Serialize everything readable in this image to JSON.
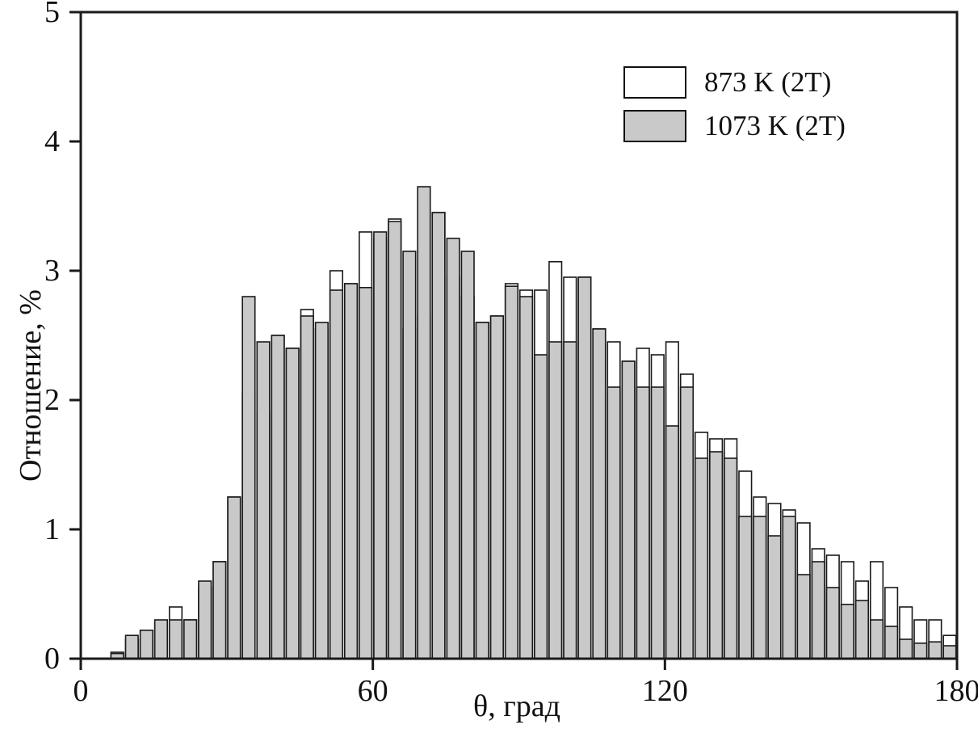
{
  "chart_data": {
    "type": "bar",
    "title": "",
    "xlabel": "θ, град",
    "ylabel": "Отношение, %",
    "xlim": [
      0,
      180
    ],
    "ylim": [
      0,
      5
    ],
    "xticks": [
      0,
      60,
      120,
      180
    ],
    "yticks": [
      0,
      1,
      2,
      3,
      4,
      5
    ],
    "grid": false,
    "legend_position": "top-right",
    "bin_start": 6,
    "bin_width": 3,
    "colors": {
      "series_873": "#ffffff",
      "series_1073": "#c9c9c9",
      "outline": "#1a1a1a"
    },
    "x_bin_centers": [
      7.5,
      10.5,
      13.5,
      16.5,
      19.5,
      22.5,
      25.5,
      28.5,
      31.5,
      34.5,
      37.5,
      40.5,
      43.5,
      46.5,
      49.5,
      52.5,
      55.5,
      58.5,
      61.5,
      64.5,
      67.5,
      70.5,
      73.5,
      76.5,
      79.5,
      82.5,
      85.5,
      88.5,
      91.5,
      94.5,
      97.5,
      100.5,
      103.5,
      106.5,
      109.5,
      112.5,
      115.5,
      118.5,
      121.5,
      124.5,
      127.5,
      130.5,
      133.5,
      136.5,
      139.5,
      142.5,
      145.5,
      148.5,
      151.5,
      154.5,
      157.5,
      160.5,
      163.5,
      166.5,
      169.5,
      172.5,
      175.5,
      178.5
    ],
    "series": [
      {
        "name": "873 K (2T)",
        "fill": "#ffffff",
        "values": [
          0.05,
          0.15,
          0.15,
          0.28,
          0.4,
          0.3,
          0.55,
          0.75,
          1.25,
          2.05,
          1.9,
          2.5,
          2.4,
          2.7,
          2.55,
          3.0,
          2.9,
          3.3,
          3.25,
          3.4,
          2.55,
          2.65,
          3.45,
          2.95,
          2.8,
          2.6,
          2.65,
          2.9,
          2.85,
          2.85,
          3.07,
          2.95,
          2.95,
          2.55,
          2.45,
          2.3,
          2.4,
          2.35,
          2.45,
          2.2,
          1.75,
          1.7,
          1.7,
          1.45,
          1.25,
          1.2,
          1.15,
          1.05,
          0.85,
          0.8,
          0.75,
          0.6,
          0.75,
          0.55,
          0.4,
          0.3,
          0.3,
          0.18
        ]
      },
      {
        "name": "1073 K (2T)",
        "fill": "#c9c9c9",
        "values": [
          0.04,
          0.18,
          0.22,
          0.3,
          0.3,
          0.3,
          0.6,
          0.75,
          1.25,
          2.8,
          2.45,
          2.5,
          2.4,
          2.65,
          2.6,
          2.85,
          2.9,
          2.87,
          3.3,
          3.38,
          3.15,
          3.65,
          3.45,
          3.25,
          3.15,
          2.6,
          2.65,
          2.88,
          2.8,
          2.35,
          2.45,
          2.45,
          2.95,
          2.55,
          2.1,
          2.3,
          2.1,
          2.1,
          1.8,
          2.1,
          1.55,
          1.6,
          1.55,
          1.1,
          1.1,
          0.95,
          1.1,
          0.65,
          0.75,
          0.55,
          0.42,
          0.45,
          0.3,
          0.25,
          0.15,
          0.12,
          0.13,
          0.1
        ]
      }
    ]
  }
}
